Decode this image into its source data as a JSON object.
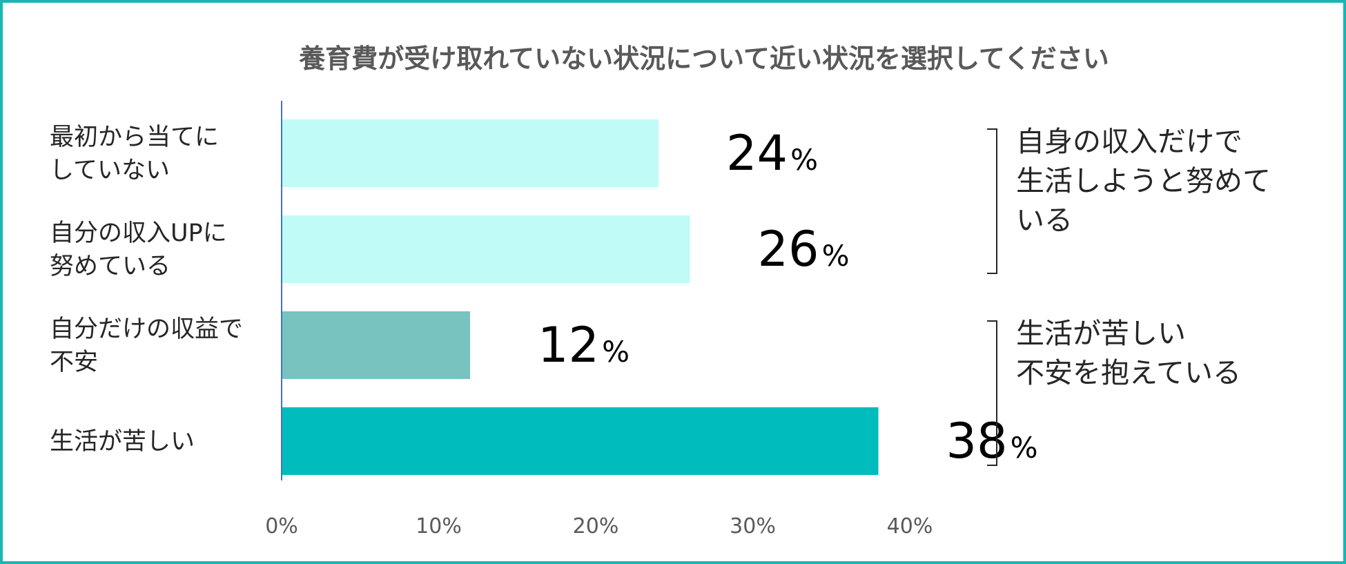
{
  "chart_data": {
    "type": "bar",
    "orientation": "horizontal",
    "title": "養育費が受け取れていない状況について近い状況を選択してください",
    "categories": [
      [
        "最初から当てに",
        "していない"
      ],
      [
        "自分の収入UPに",
        "努めている"
      ],
      [
        "自分だけの収益で",
        "不安"
      ],
      [
        "生活が苦しい"
      ]
    ],
    "values": [
      24,
      26,
      12,
      38
    ],
    "value_suffix": "%",
    "bar_colors": [
      "#c0fbf7",
      "#c0fbf7",
      "#78c2c0",
      "#00bcbd"
    ],
    "xlim": [
      0,
      40
    ],
    "x_ticks": [
      "0%",
      "10%",
      "20%",
      "30%",
      "40%"
    ],
    "grid": false,
    "groups": [
      {
        "label": [
          "自身の収入だけで",
          "生活しようと努めて",
          "いる"
        ],
        "bars": [
          0,
          1
        ]
      },
      {
        "label": [
          "生活が苦しい",
          "不安を抱えている"
        ],
        "bars": [
          2,
          3
        ]
      }
    ]
  },
  "colors": {
    "border": "#1ab6b2",
    "axis": "#4472c4"
  }
}
